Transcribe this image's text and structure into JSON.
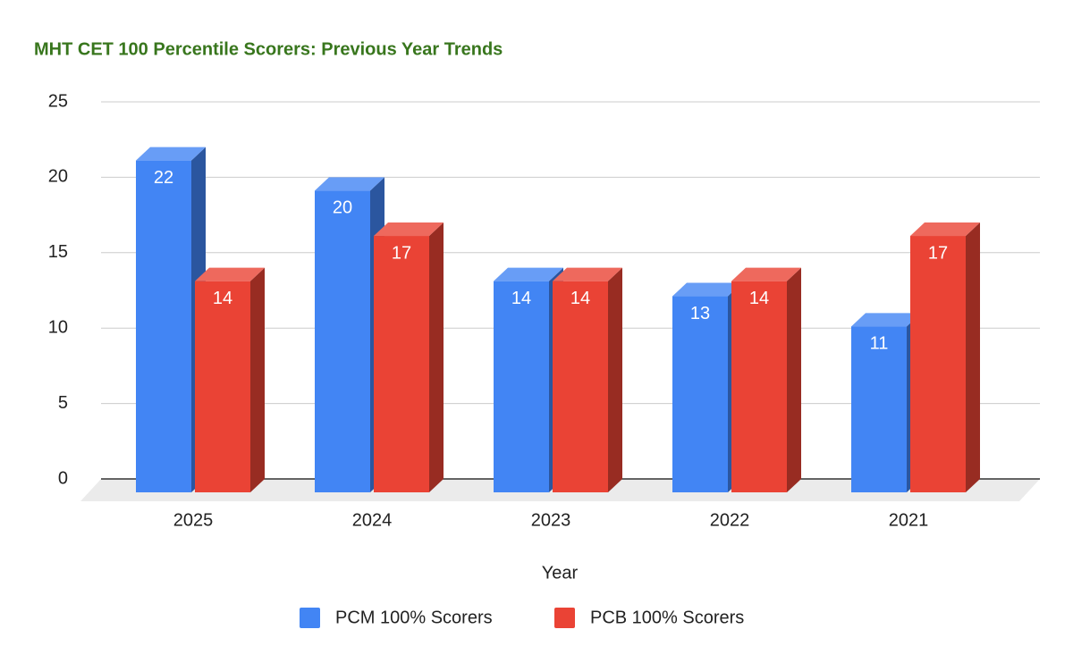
{
  "chart_data": {
    "type": "bar3d",
    "title": "MHT CET 100 Percentile Scorers: Previous Year Trends",
    "x_label": "Year",
    "categories": [
      "2025",
      "2024",
      "2023",
      "2022",
      "2021"
    ],
    "series": [
      {
        "name": "PCM 100% Scorers",
        "color": "#4285f4",
        "values": [
          22,
          20,
          14,
          13,
          11
        ]
      },
      {
        "name": "PCB 100% Scorers",
        "color": "#ea4335",
        "values": [
          14,
          17,
          14,
          14,
          17
        ]
      }
    ],
    "ylim": [
      0,
      25
    ],
    "yticks": [
      0,
      5,
      10,
      15,
      20,
      25
    ],
    "grid": true,
    "legend": "bottom"
  }
}
